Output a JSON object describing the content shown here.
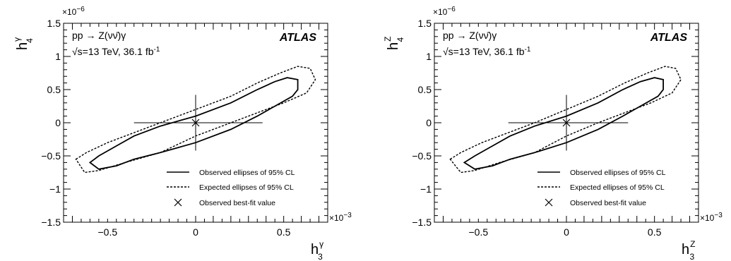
{
  "chart_data": [
    {
      "type": "line",
      "xlabel": {
        "main": "h",
        "sub": "3",
        "sup": "γ"
      },
      "ylabel": {
        "main": "h",
        "sub": "4",
        "sup": "γ"
      },
      "x_multiplier": {
        "base": "×10",
        "exp": "−3"
      },
      "y_multiplier": {
        "base": "×10",
        "exp": "−6"
      },
      "xlim": [
        -0.75,
        0.75
      ],
      "ylim": [
        -1.5,
        1.5
      ],
      "xticks": [
        -0.5,
        0,
        0.5
      ],
      "xtick_labels": [
        "−0.5",
        "0",
        "0.5"
      ],
      "yticks": [
        -1.5,
        -1,
        -0.5,
        0,
        0.5,
        1,
        1.5
      ],
      "ytick_labels": [
        "−1.5",
        "−1",
        "−0.5",
        "0",
        "0.5",
        "1",
        "1.5"
      ],
      "experiment": "ATLAS",
      "process": {
        "text": "pp → Z(νν̄)γ"
      },
      "energy": {
        "pre": "√s=13 TeV, 36.1 fb",
        "sup": "-1"
      },
      "legend": [
        {
          "label": "Observed ellipses of 95% CL",
          "style": "solid"
        },
        {
          "label": "Expected ellipses of 95% CL",
          "style": "dashed"
        },
        {
          "label": "Observed best-fit value",
          "style": "marker"
        }
      ],
      "legend_position": "bottom-right",
      "series": [
        {
          "kind": "observed",
          "x": [
            -0.6,
            -0.55,
            -0.45,
            -0.35,
            -0.2,
            0,
            0.2,
            0.35,
            0.45,
            0.52,
            0.58,
            0.58,
            0.55,
            0.45,
            0.35,
            0.2,
            0,
            -0.2,
            -0.35,
            -0.45,
            -0.55,
            -0.6
          ],
          "y": [
            -0.6,
            -0.5,
            -0.35,
            -0.2,
            -0.05,
            0.1,
            0.3,
            0.5,
            0.62,
            0.68,
            0.65,
            0.5,
            0.4,
            0.25,
            0.1,
            -0.1,
            -0.3,
            -0.45,
            -0.55,
            -0.65,
            -0.7,
            -0.6
          ]
        },
        {
          "kind": "expected",
          "x": [
            -0.68,
            -0.62,
            -0.5,
            -0.35,
            -0.2,
            0,
            0.2,
            0.35,
            0.48,
            0.58,
            0.65,
            0.68,
            0.63,
            0.5,
            0.35,
            0.2,
            0,
            -0.2,
            -0.4,
            -0.55,
            -0.63,
            -0.68
          ],
          "y": [
            -0.55,
            -0.45,
            -0.3,
            -0.15,
            0,
            0.2,
            0.4,
            0.6,
            0.75,
            0.85,
            0.82,
            0.65,
            0.45,
            0.3,
            0.15,
            0,
            -0.2,
            -0.45,
            -0.6,
            -0.72,
            -0.75,
            -0.55
          ]
        }
      ],
      "best_fit": {
        "x": 0,
        "y": 0
      },
      "best_fit_range": {
        "x": [
          -0.35,
          0.38
        ],
        "y": [
          -0.42,
          0.42
        ]
      }
    },
    {
      "type": "line",
      "xlabel": {
        "main": "h",
        "sub": "3",
        "sup": "Z"
      },
      "ylabel": {
        "main": "h",
        "sub": "4",
        "sup": "Z"
      },
      "x_multiplier": {
        "base": "×10",
        "exp": "−3"
      },
      "y_multiplier": {
        "base": "×10",
        "exp": "−6"
      },
      "xlim": [
        -0.75,
        0.75
      ],
      "ylim": [
        -1.5,
        1.5
      ],
      "xticks": [
        -0.5,
        0,
        0.5
      ],
      "xtick_labels": [
        "−0.5",
        "0",
        "0.5"
      ],
      "yticks": [
        -1.5,
        -1,
        -0.5,
        0,
        0.5,
        1,
        1.5
      ],
      "ytick_labels": [
        "−1.5",
        "−1",
        "−0.5",
        "0",
        "0.5",
        "1",
        "1.5"
      ],
      "experiment": "ATLAS",
      "process": {
        "text": "pp → Z(νν̄)γ"
      },
      "energy": {
        "pre": "√s=13 TeV, 36.1 fb",
        "sup": "-1"
      },
      "legend": [
        {
          "label": "Observed ellipses of 95% CL",
          "style": "solid"
        },
        {
          "label": "Expected ellipses of 95% CL",
          "style": "dashed"
        },
        {
          "label": "Observed best-fit value",
          "style": "marker"
        }
      ],
      "legend_position": "bottom-right",
      "series": [
        {
          "kind": "observed",
          "x": [
            -0.58,
            -0.52,
            -0.42,
            -0.32,
            -0.18,
            0,
            0.18,
            0.32,
            0.42,
            0.5,
            0.55,
            0.55,
            0.52,
            0.42,
            0.32,
            0.18,
            0,
            -0.18,
            -0.32,
            -0.42,
            -0.52,
            -0.58
          ],
          "y": [
            -0.6,
            -0.5,
            -0.35,
            -0.2,
            -0.05,
            0.1,
            0.3,
            0.5,
            0.62,
            0.68,
            0.65,
            0.5,
            0.4,
            0.25,
            0.1,
            -0.1,
            -0.3,
            -0.45,
            -0.55,
            -0.65,
            -0.7,
            -0.6
          ]
        },
        {
          "kind": "expected",
          "x": [
            -0.66,
            -0.6,
            -0.48,
            -0.33,
            -0.18,
            0,
            0.18,
            0.33,
            0.46,
            0.56,
            0.62,
            0.65,
            0.6,
            0.48,
            0.33,
            0.18,
            0,
            -0.18,
            -0.38,
            -0.52,
            -0.6,
            -0.66
          ],
          "y": [
            -0.55,
            -0.45,
            -0.3,
            -0.15,
            0,
            0.2,
            0.4,
            0.6,
            0.75,
            0.85,
            0.82,
            0.65,
            0.45,
            0.3,
            0.15,
            0,
            -0.2,
            -0.45,
            -0.6,
            -0.72,
            -0.75,
            -0.55
          ]
        }
      ],
      "best_fit": {
        "x": 0,
        "y": 0
      },
      "best_fit_range": {
        "x": [
          -0.33,
          0.35
        ],
        "y": [
          -0.42,
          0.42
        ]
      }
    }
  ]
}
